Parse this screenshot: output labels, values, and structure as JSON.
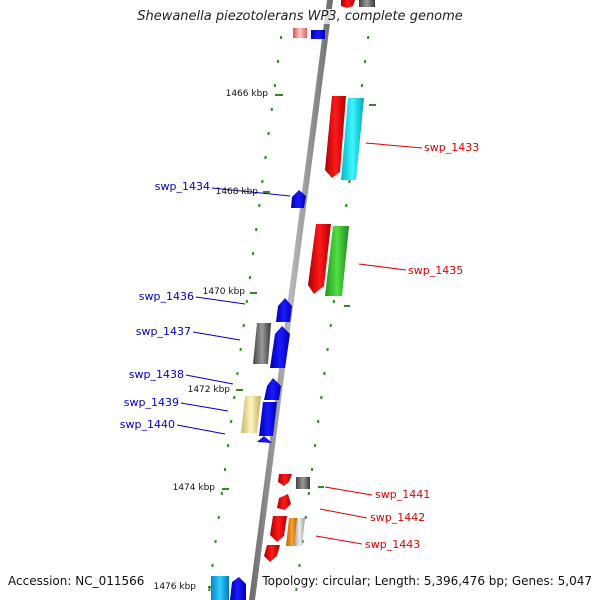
{
  "title": "Shewanella piezotolerans WP3, complete genome",
  "accession": "Accession: NC_011566",
  "topology": "Topology: circular; Length: 5,396,476 bp; Genes: 5,047",
  "colors": {
    "backbone": "#8a8a8a",
    "tick": "#2e8b1e",
    "label_left": "#0000cc",
    "label_right": "#dd0000",
    "tick_label": "#111111"
  },
  "scale_labels": [
    "1466 kbp",
    "1468 kbp",
    "1470 kbp",
    "1472 kbp",
    "1474 kbp",
    "1476 kbp"
  ],
  "gene_labels": [
    {
      "text": "swp_1433",
      "side": "right"
    },
    {
      "text": "swp_1434",
      "side": "left"
    },
    {
      "text": "swp_1435",
      "side": "right"
    },
    {
      "text": "swp_1436",
      "side": "left"
    },
    {
      "text": "swp_1437",
      "side": "left"
    },
    {
      "text": "swp_1438",
      "side": "left"
    },
    {
      "text": "swp_1439",
      "side": "left"
    },
    {
      "text": "swp_1440",
      "side": "left"
    },
    {
      "text": "swp_1441",
      "side": "right"
    },
    {
      "text": "swp_1442",
      "side": "right"
    },
    {
      "text": "swp_1443",
      "side": "right"
    }
  ]
}
